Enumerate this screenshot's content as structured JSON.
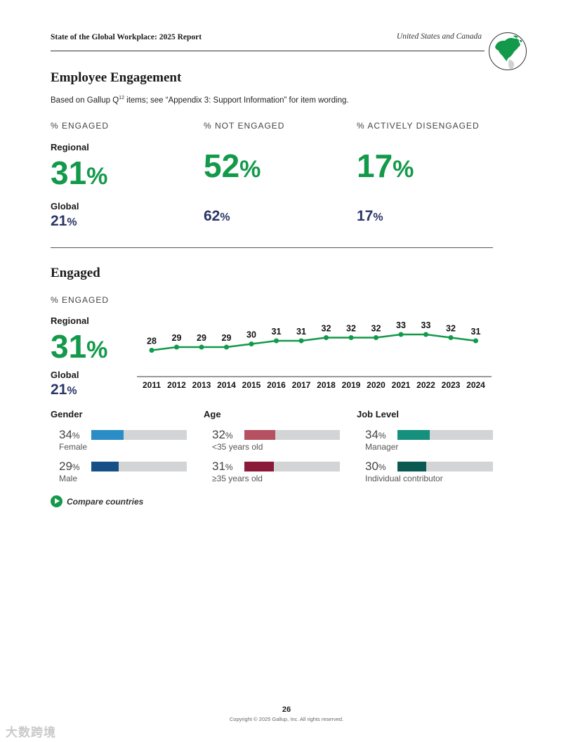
{
  "header": {
    "report_title": "State of the Global Workplace: 2025 Report",
    "region": "United States and Canada"
  },
  "employee_engagement": {
    "title": "Employee Engagement",
    "note_prefix": "Based on Gallup Q",
    "note_sup": "12",
    "note_suffix": " items; see “Appendix 3: Support Information” for item wording.",
    "regional_label": "Regional",
    "global_label": "Global",
    "pct_sign": "%",
    "metrics": [
      {
        "label": "% ENGAGED",
        "regional": "31",
        "global": "21"
      },
      {
        "label": "% NOT ENGAGED",
        "regional": "52",
        "global": "62"
      },
      {
        "label": "% ACTIVELY DISENGAGED",
        "regional": "17",
        "global": "17"
      }
    ]
  },
  "engaged": {
    "title": "Engaged",
    "label": "% ENGAGED",
    "regional_label": "Regional",
    "regional_value": "31",
    "global_label": "Global",
    "global_value": "21",
    "pct_sign": "%"
  },
  "chart_data": {
    "type": "line",
    "title": "",
    "xlabel": "",
    "ylabel": "% Engaged",
    "x": [
      "2011",
      "2012",
      "2013",
      "2014",
      "2015",
      "2016",
      "2017",
      "2018",
      "2019",
      "2020",
      "2021",
      "2022",
      "2023",
      "2024"
    ],
    "series": [
      {
        "name": "Regional % engaged",
        "values": [
          28,
          29,
          29,
          29,
          30,
          31,
          31,
          32,
          32,
          32,
          33,
          33,
          32,
          31
        ]
      }
    ],
    "data_labels": true,
    "color": "#12994a"
  },
  "breakdown": {
    "pct_sign": "%",
    "groups": [
      {
        "heading": "Gender",
        "rows": [
          {
            "value": "34",
            "fraction": 0.34,
            "label": "Female",
            "color": "#2b8dc6"
          },
          {
            "value": "29",
            "fraction": 0.29,
            "label": "Male",
            "color": "#154f86"
          }
        ]
      },
      {
        "heading": "Age",
        "rows": [
          {
            "value": "32",
            "fraction": 0.32,
            "label": "<35 years old",
            "color": "#b55160"
          },
          {
            "value": "31",
            "fraction": 0.31,
            "label": "≥35 years old",
            "color": "#8b1a38"
          }
        ]
      },
      {
        "heading": "Job Level",
        "rows": [
          {
            "value": "34",
            "fraction": 0.34,
            "label": "Manager",
            "color": "#14907c"
          },
          {
            "value": "30",
            "fraction": 0.3,
            "label": "Individual contributor",
            "color": "#0b5a52"
          }
        ]
      }
    ]
  },
  "compare_link": "Compare countries",
  "footer": {
    "page_number": "26",
    "copyright": "Copyright © 2025 Gallup, Inc. All rights reserved."
  },
  "watermark": "大数跨境"
}
